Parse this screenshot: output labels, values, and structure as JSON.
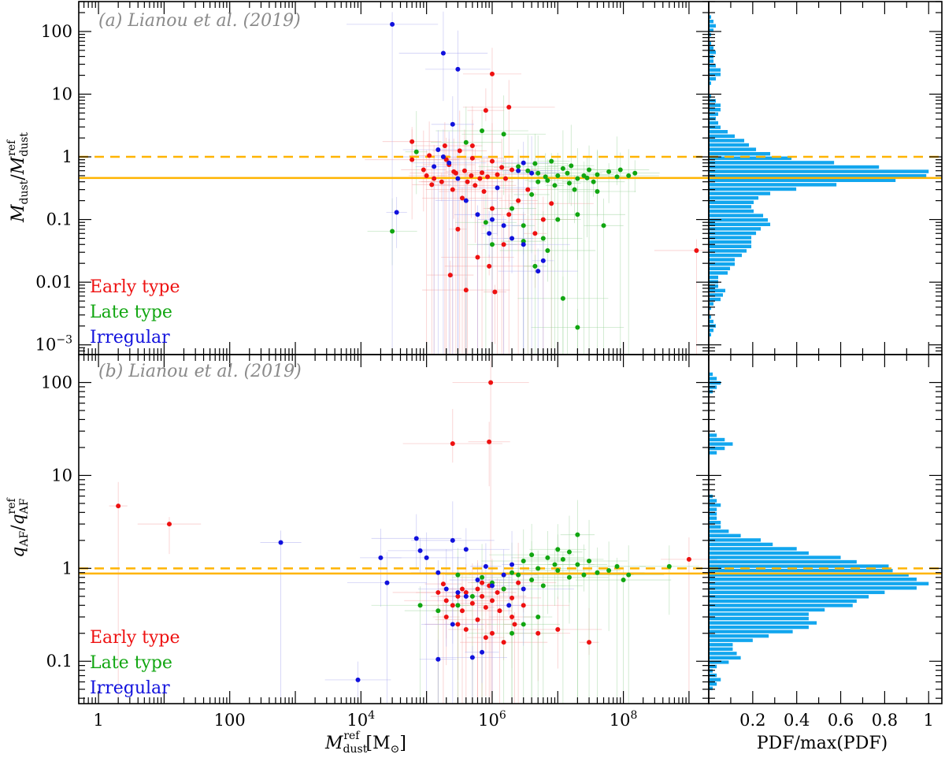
{
  "chart_data": [
    {
      "panel": "a",
      "type": "scatter",
      "title": "(a) Lianou et al. (2019)",
      "ylabel": "M_dust/M_dust^ref",
      "xscale": "log",
      "yscale": "log",
      "xlim": [
        0.5,
        2000000000
      ],
      "ylim": [
        0.0007,
        300
      ],
      "yticks": [
        {
          "v": 100,
          "label": "100"
        },
        {
          "v": 10,
          "label": "10"
        },
        {
          "v": 1,
          "label": "1"
        },
        {
          "v": 0.1,
          "label": "0.1"
        },
        {
          "v": 0.01,
          "label": "0.01"
        },
        {
          "v": 0.001,
          "label": "10^-3"
        }
      ],
      "ref_lines": {
        "dashed": 1.0,
        "solid": 0.46
      },
      "legend": [
        {
          "label": "Early type",
          "color": "#ee1111"
        },
        {
          "label": "Late type",
          "color": "#11a611"
        },
        {
          "label": "Irregular",
          "color": "#1111dd"
        }
      ],
      "series": [
        {
          "name": "Early type",
          "points": [
            [
              1000000.0,
              21
            ],
            [
              800000.0,
              5.5
            ],
            [
              1800000.0,
              6.2
            ],
            [
              110000.0,
              1.05
            ],
            [
              60000.0,
              1.75
            ],
            [
              190000.0,
              1.5
            ],
            [
              500000.0,
              1.5
            ],
            [
              320000.0,
              1.25
            ],
            [
              220000.0,
              0.75
            ],
            [
              380000.0,
              0.6
            ],
            [
              100000.0,
              0.5
            ],
            [
              130000.0,
              0.45
            ],
            [
              170000.0,
              0.4
            ],
            [
              280000.0,
              0.55
            ],
            [
              480000.0,
              0.5
            ],
            [
              650000.0,
              0.45
            ],
            [
              850000.0,
              0.48
            ],
            [
              1200000.0,
              0.52
            ],
            [
              1600000.0,
              0.45
            ],
            [
              250000.0,
              0.3
            ],
            [
              350000.0,
              0.22
            ],
            [
              550000.0,
              0.35
            ],
            [
              750000.0,
              0.28
            ],
            [
              1000000.0,
              0.15
            ],
            [
              1800000.0,
              0.12
            ],
            [
              2500000.0,
              0.2
            ],
            [
              3500000.0,
              0.3
            ],
            [
              4500000.0,
              0.06
            ],
            [
              6000000.0,
              0.1
            ],
            [
              8000000.0,
              0.18
            ],
            [
              300000.0,
              0.07
            ],
            [
              600000.0,
              0.025
            ],
            [
              400000.0,
              0.0075
            ],
            [
              1100000.0,
              0.007
            ],
            [
              900000.0,
              0.018
            ],
            [
              1500000.0,
              0.04
            ],
            [
              230000.0,
              0.013
            ],
            [
              1300000000.0,
              0.032
            ],
            [
              1400000.0,
              0.68
            ],
            [
              2000000.0,
              0.62
            ],
            [
              260000.0,
              0.58
            ],
            [
              90000.0,
              0.62
            ],
            [
              120000.0,
              0.36
            ],
            [
              420000.0,
              0.4
            ],
            [
              700000.0,
              0.56
            ],
            [
              200000.0,
              0.9
            ],
            [
              500000.0,
              0.95
            ],
            [
              1000000.0,
              0.85
            ],
            [
              60000.0,
              0.9
            ]
          ]
        },
        {
          "name": "Late type",
          "points": [
            [
              700000.0,
              2.6
            ],
            [
              1500000.0,
              2.3
            ],
            [
              400000.0,
              1.7
            ],
            [
              70000.0,
              1.2
            ],
            [
              30000.0,
              0.065
            ],
            [
              5000000.0,
              0.55
            ],
            [
              10000000.0,
              0.5
            ],
            [
              20000000.0,
              0.45
            ],
            [
              40000000.0,
              0.52
            ],
            [
              80000000.0,
              0.48
            ],
            [
              150000000.0,
              0.55
            ],
            [
              2500000.0,
              0.7
            ],
            [
              3500000.0,
              0.6
            ],
            [
              7000000.0,
              0.42
            ],
            [
              15000000.0,
              0.38
            ],
            [
              30000000.0,
              0.62
            ],
            [
              60000000.0,
              0.58
            ],
            [
              12000000.0,
              0.65
            ],
            [
              25000000.0,
              0.5
            ],
            [
              5000000.0,
              0.4
            ],
            [
              9000000.0,
              0.35
            ],
            [
              18000000.0,
              0.3
            ],
            [
              4000000.0,
              0.25
            ],
            [
              2000000.0,
              0.15
            ],
            [
              3000000.0,
              0.08
            ],
            [
              6000000.0,
              0.05
            ],
            [
              10000000.0,
              0.1
            ],
            [
              20000000.0,
              0.12
            ],
            [
              50000000.0,
              0.08
            ],
            [
              40000000.0,
              0.28
            ],
            [
              3000000.0,
              0.045
            ],
            [
              1000000.0,
              0.04
            ],
            [
              800000.0,
              0.09
            ],
            [
              4500000.0,
              0.018
            ],
            [
              7000000.0,
              0.032
            ],
            [
              12000000.0,
              0.0055
            ],
            [
              20000000.0,
              0.0019
            ],
            [
              8000000.0,
              0.85
            ],
            [
              16000000.0,
              0.72
            ],
            [
              35000000.0,
              0.4
            ],
            [
              90000000.0,
              0.62
            ],
            [
              120000000.0,
              0.5
            ],
            [
              4500000.0,
              0.78
            ],
            [
              6500000.0,
              0.48
            ],
            [
              14000000.0,
              0.55
            ],
            [
              28000000.0,
              0.46
            ]
          ]
        },
        {
          "name": "Irregular",
          "points": [
            [
              30000.0,
              130
            ],
            [
              180000.0,
              45
            ],
            [
              300000.0,
              25
            ],
            [
              250000.0,
              3.3
            ],
            [
              150000.0,
              1.3
            ],
            [
              180000.0,
              1.0
            ],
            [
              220000.0,
              0.8
            ],
            [
              130000.0,
              0.7
            ],
            [
              35000.0,
              0.13
            ],
            [
              400000.0,
              0.2
            ],
            [
              600000.0,
              0.12
            ],
            [
              1000000.0,
              0.1
            ],
            [
              1500000.0,
              0.08
            ],
            [
              2000000.0,
              0.05
            ],
            [
              3000000.0,
              0.04
            ],
            [
              5000000.0,
              0.015
            ],
            [
              2500000.0,
              0.6
            ],
            [
              4000000.0,
              0.55
            ],
            [
              3000000.0,
              0.8
            ],
            [
              300000.0,
              0.45
            ],
            [
              1200000.0,
              0.32
            ],
            [
              6000000.0,
              0.022
            ],
            [
              900000.0,
              0.06
            ]
          ]
        }
      ],
      "histogram": {
        "xlabel": "PDF/max(PDF)",
        "xlim": [
          0,
          1.06
        ],
        "xticks": [
          0.2,
          0.4,
          0.6,
          0.8,
          1
        ]
      }
    },
    {
      "panel": "b",
      "type": "scatter",
      "title": "(b) Lianou et al. (2019)",
      "xlabel": "M_dust^ref [M_sun]",
      "ylabel": "q_AF/q_AF^ref",
      "xscale": "log",
      "yscale": "log",
      "xlim": [
        0.5,
        2000000000
      ],
      "ylim": [
        0.035,
        200
      ],
      "xticks": [
        {
          "v": 1,
          "label": "1"
        },
        {
          "v": 100,
          "label": "100"
        },
        {
          "v": 10000,
          "label": "10^4"
        },
        {
          "v": 1000000,
          "label": "10^6"
        },
        {
          "v": 100000000,
          "label": "10^8"
        }
      ],
      "yticks": [
        {
          "v": 100,
          "label": "100"
        },
        {
          "v": 10,
          "label": "10"
        },
        {
          "v": 1,
          "label": "1"
        },
        {
          "v": 0.1,
          "label": "0.1"
        }
      ],
      "ref_lines": {
        "dashed": 1.0,
        "solid": 0.88
      },
      "legend": [
        {
          "label": "Early type",
          "color": "#ee1111"
        },
        {
          "label": "Late type",
          "color": "#11a611"
        },
        {
          "label": "Irregular",
          "color": "#1111dd"
        }
      ],
      "series": [
        {
          "name": "Early type",
          "points": [
            [
              2.0,
              4.7
            ],
            [
              12,
              3.0
            ],
            [
              950000.0,
              100
            ],
            [
              250000.0,
              22
            ],
            [
              900000.0,
              23
            ],
            [
              150000.0,
              0.55
            ],
            [
              200000.0,
              0.45
            ],
            [
              250000.0,
              0.4
            ],
            [
              300000.0,
              0.5
            ],
            [
              350000.0,
              0.35
            ],
            [
              400000.0,
              0.55
            ],
            [
              500000.0,
              0.42
            ],
            [
              600000.0,
              0.6
            ],
            [
              700000.0,
              0.5
            ],
            [
              800000.0,
              0.38
            ],
            [
              900000.0,
              0.65
            ],
            [
              1000000.0,
              0.45
            ],
            [
              1200000.0,
              0.55
            ],
            [
              1500000.0,
              0.6
            ],
            [
              2000000.0,
              0.48
            ],
            [
              2500000.0,
              0.7
            ],
            [
              3000000.0,
              0.4
            ],
            [
              200000.0,
              0.3
            ],
            [
              300000.0,
              0.25
            ],
            [
              400000.0,
              0.22
            ],
            [
              600000.0,
              0.28
            ],
            [
              800000.0,
              0.18
            ],
            [
              1000000.0,
              0.2
            ],
            [
              1500000.0,
              0.16
            ],
            [
              2000000.0,
              0.3
            ],
            [
              5000000.0,
              0.2
            ],
            [
              10000000.0,
              0.22
            ],
            [
              30000000.0,
              0.16
            ],
            [
              1000000000.0,
              1.25
            ],
            [
              700000.0,
              0.7
            ],
            [
              180000.0,
              0.68
            ],
            [
              350000.0,
              0.6
            ],
            [
              1300000.0,
              0.35
            ],
            [
              2200000.0,
              0.25
            ]
          ]
        },
        {
          "name": "Late type",
          "points": [
            [
              5000000.0,
              1.0
            ],
            [
              10000000.0,
              0.95
            ],
            [
              20000000.0,
              1.1
            ],
            [
              40000000.0,
              0.9
            ],
            [
              80000000.0,
              1.05
            ],
            [
              120000000.0,
              0.85
            ],
            [
              3000000.0,
              1.2
            ],
            [
              7000000.0,
              1.3
            ],
            [
              15000000.0,
              0.8
            ],
            [
              30000000.0,
              1.2
            ],
            [
              60000000.0,
              0.95
            ],
            [
              2500000.0,
              0.85
            ],
            [
              4000000.0,
              0.75
            ],
            [
              20000000.0,
              2.3
            ],
            [
              15000000.0,
              1.5
            ],
            [
              10000000.0,
              1.6
            ],
            [
              6000000.0,
              0.65
            ],
            [
              2000000.0,
              0.9
            ],
            [
              1500000.0,
              0.6
            ],
            [
              1000000.0,
              0.7
            ],
            [
              700000.0,
              0.8
            ],
            [
              500000.0,
              0.5
            ],
            [
              300000.0,
              0.4
            ],
            [
              150000.0,
              0.35
            ],
            [
              80000.0,
              0.4
            ],
            [
              3000000.0,
              0.25
            ],
            [
              5000000.0,
              0.3
            ],
            [
              2000000.0,
              0.2
            ],
            [
              300000.0,
              0.85
            ],
            [
              100000000.0,
              0.75
            ],
            [
              500000000.0,
              1.05
            ],
            [
              4000000.0,
              1.4
            ],
            [
              9000000.0,
              1.1
            ],
            [
              25000000.0,
              0.85
            ],
            [
              12000000.0,
              1.25
            ]
          ]
        },
        {
          "name": "Irregular",
          "points": [
            [
              9000.0,
              0.063
            ],
            [
              600,
              1.9
            ],
            [
              20000.0,
              1.3
            ],
            [
              25000.0,
              0.7
            ],
            [
              70000.0,
              2.1
            ],
            [
              80000.0,
              1.55
            ],
            [
              100000.0,
              1.3
            ],
            [
              250000.0,
              2.0
            ],
            [
              400000.0,
              1.6
            ],
            [
              150000.0,
              0.9
            ],
            [
              200000.0,
              0.6
            ],
            [
              300000.0,
              0.55
            ],
            [
              400000.0,
              0.5
            ],
            [
              600000.0,
              0.75
            ],
            [
              1000000.0,
              0.65
            ],
            [
              1500000.0,
              0.85
            ],
            [
              2000000.0,
              1.1
            ],
            [
              250000.0,
              0.25
            ],
            [
              150000.0,
              0.105
            ],
            [
              500000.0,
              0.11
            ],
            [
              700000.0,
              0.125
            ],
            [
              800000.0,
              1.05
            ],
            [
              3000000.0,
              0.6
            ],
            [
              1800000.0,
              0.4
            ]
          ]
        }
      ],
      "histogram": {
        "xlabel": "PDF/max(PDF)",
        "xlim": [
          0,
          1.06
        ],
        "xticks": [
          0.2,
          0.4,
          0.6,
          0.8,
          1
        ]
      }
    }
  ],
  "colors": {
    "early": "#ee1111",
    "late": "#11a611",
    "irregular": "#1111dd",
    "hist": "#12a6ee",
    "refline": "#ffb400",
    "title": "#8a8a8a"
  }
}
